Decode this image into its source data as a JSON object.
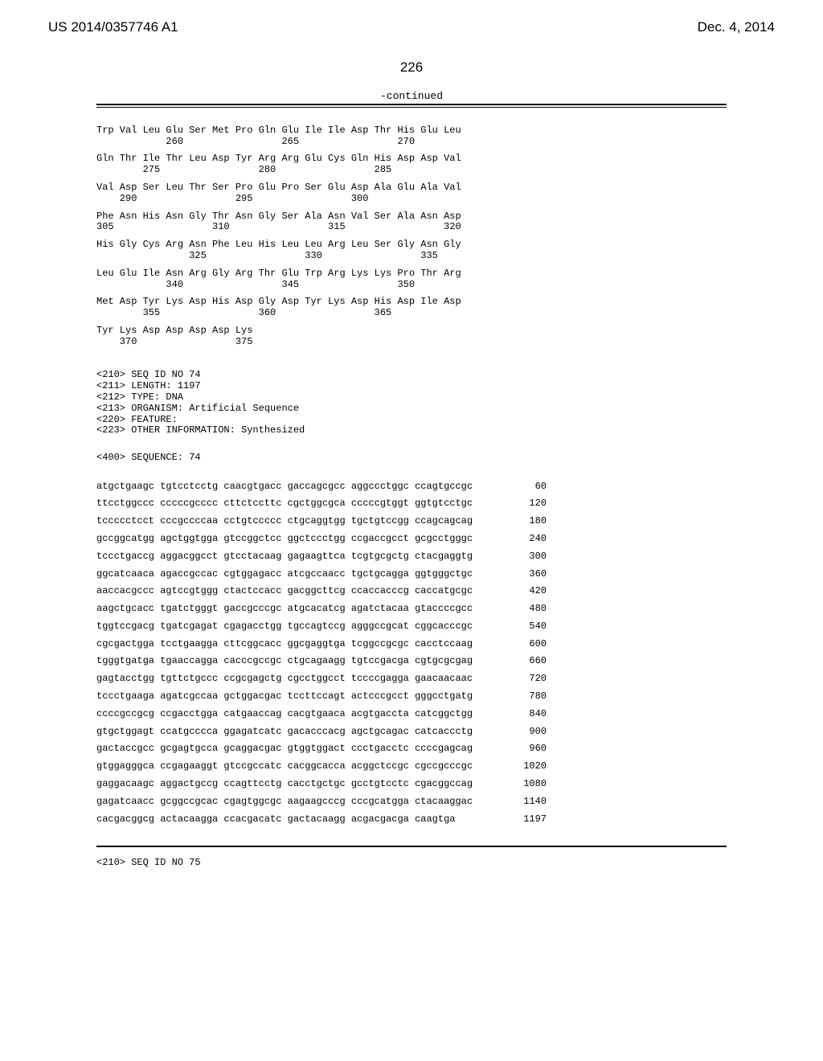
{
  "header": {
    "pub_number": "US 2014/0357746 A1",
    "pub_date": "Dec. 4, 2014"
  },
  "page_number": "226",
  "continued_label": "-continued",
  "amino_acid_rows": [
    {
      "seq": "Trp Val Leu Glu Ser Met Pro Gln Glu Ile Ile Asp Thr His Glu Leu",
      "nums": "            260                 265                 270"
    },
    {
      "seq": "Gln Thr Ile Thr Leu Asp Tyr Arg Arg Glu Cys Gln His Asp Asp Val",
      "nums": "        275                 280                 285"
    },
    {
      "seq": "Val Asp Ser Leu Thr Ser Pro Glu Pro Ser Glu Asp Ala Glu Ala Val",
      "nums": "    290                 295                 300"
    },
    {
      "seq": "Phe Asn His Asn Gly Thr Asn Gly Ser Ala Asn Val Ser Ala Asn Asp",
      "nums": "305                 310                 315                 320"
    },
    {
      "seq": "His Gly Cys Arg Asn Phe Leu His Leu Leu Arg Leu Ser Gly Asn Gly",
      "nums": "                325                 330                 335"
    },
    {
      "seq": "Leu Glu Ile Asn Arg Gly Arg Thr Glu Trp Arg Lys Lys Pro Thr Arg",
      "nums": "            340                 345                 350"
    },
    {
      "seq": "Met Asp Tyr Lys Asp His Asp Gly Asp Tyr Lys Asp His Asp Ile Asp",
      "nums": "        355                 360                 365"
    },
    {
      "seq": "Tyr Lys Asp Asp Asp Asp Lys",
      "nums": "    370                 375"
    }
  ],
  "meta": [
    "<210> SEQ ID NO 74",
    "<211> LENGTH: 1197",
    "<212> TYPE: DNA",
    "<213> ORGANISM: Artificial Sequence",
    "<220> FEATURE:",
    "<223> OTHER INFORMATION: Synthesized"
  ],
  "sequence_header": "<400> SEQUENCE: 74",
  "dna_rows": [
    {
      "seq": "atgctgaagc tgtcctcctg caacgtgacc gaccagcgcc aggccctggc ccagtgccgc",
      "num": "60"
    },
    {
      "seq": "ttcctggccc cccccgcccc cttctccttc cgctggcgca cccccgtggt ggtgtcctgc",
      "num": "120"
    },
    {
      "seq": "tccccctcct cccgccccaa cctgtccccc ctgcaggtgg tgctgtccgg ccagcagcag",
      "num": "180"
    },
    {
      "seq": "gccggcatgg agctggtgga gtccggctcc ggctccctgg ccgaccgcct gcgcctgggc",
      "num": "240"
    },
    {
      "seq": "tccctgaccg aggacggcct gtcctacaag gagaagttca tcgtgcgctg ctacgaggtg",
      "num": "300"
    },
    {
      "seq": "ggcatcaaca agaccgccac cgtggagacc atcgccaacc tgctgcagga ggtgggctgc",
      "num": "360"
    },
    {
      "seq": "aaccacgccc agtccgtggg ctactccacc gacggcttcg ccaccacccg caccatgcgc",
      "num": "420"
    },
    {
      "seq": "aagctgcacc tgatctgggt gaccgcccgc atgcacatcg agatctacaa gtaccccgcc",
      "num": "480"
    },
    {
      "seq": "tggtccgacg tgatcgagat cgagacctgg tgccagtccg agggccgcat cggcacccgc",
      "num": "540"
    },
    {
      "seq": "cgcgactgga tcctgaagga cttcggcacc ggcgaggtga tcggccgcgc cacctccaag",
      "num": "600"
    },
    {
      "seq": "tgggtgatga tgaaccagga cacccgccgc ctgcagaagg tgtccgacga cgtgcgcgag",
      "num": "660"
    },
    {
      "seq": "gagtacctgg tgttctgccc ccgcgagctg cgcctggcct tccccgagga gaacaacaac",
      "num": "720"
    },
    {
      "seq": "tccctgaaga agatcgccaa gctggacgac tccttccagt actcccgcct gggcctgatg",
      "num": "780"
    },
    {
      "seq": "ccccgccgcg ccgacctgga catgaaccag cacgtgaaca acgtgaccta catcggctgg",
      "num": "840"
    },
    {
      "seq": "gtgctggagt ccatgcccca ggagatcatc gacacccacg agctgcagac catcaccctg",
      "num": "900"
    },
    {
      "seq": "gactaccgcc gcgagtgcca gcaggacgac gtggtggact ccctgacctc ccccgagcag",
      "num": "960"
    },
    {
      "seq": "gtggagggca ccgagaaggt gtccgccatc cacggcacca acggctccgc cgccgcccgc",
      "num": "1020"
    },
    {
      "seq": "gaggacaagc aggactgccg ccagttcctg cacctgctgc gcctgtcctc cgacggccag",
      "num": "1080"
    },
    {
      "seq": "gagatcaacc gcggccgcac cgagtggcgc aagaagcccg cccgcatgga ctacaaggac",
      "num": "1140"
    },
    {
      "seq": "cacgacggcg actacaagga ccacgacatc gactacaagg acgacgacga caagtga",
      "num": "1197"
    }
  ],
  "footer_note": "<210> SEQ ID NO 75"
}
